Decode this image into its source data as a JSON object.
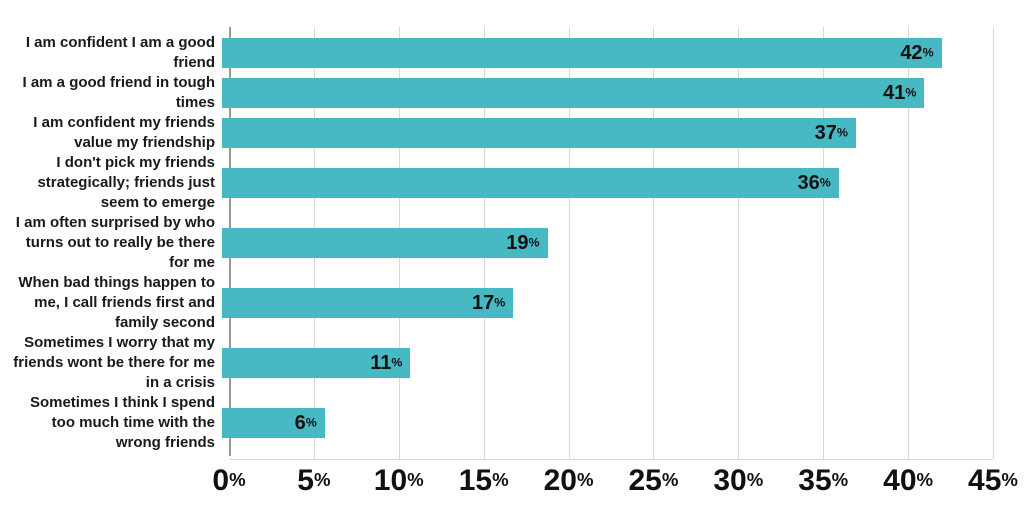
{
  "chart_data": {
    "type": "bar",
    "orientation": "horizontal",
    "title": "",
    "xlabel": "",
    "ylabel": "",
    "categories": [
      "I am confident I am a good\nfriend",
      "I am a good friend in tough\ntimes",
      "I am confident my friends\nvalue my friendship",
      "I don't pick my friends\nstrategically; friends just\nseem to emerge",
      "I am often surprised by who\nturns out to really be there\nfor me",
      "When bad things happen to\nme, I call friends first and\nfamily second",
      "Sometimes I worry that my\nfriends wont be there for me\nin a crisis",
      "Sometimes I think I spend\ntoo much time with the\nwrong friends"
    ],
    "values": [
      42,
      41,
      37,
      36,
      19,
      17,
      11,
      6
    ],
    "value_labels": [
      "42%",
      "41%",
      "37%",
      "36%",
      "19%",
      "17%",
      "11%",
      "6%"
    ],
    "xlim": [
      0,
      45
    ],
    "x_ticks": [
      {
        "value": 0,
        "label": "0%"
      },
      {
        "value": 5,
        "label": "5%"
      },
      {
        "value": 10,
        "label": "10%"
      },
      {
        "value": 15,
        "label": "15%"
      },
      {
        "value": 20,
        "label": "20%"
      },
      {
        "value": 25,
        "label": "25%"
      },
      {
        "value": 30,
        "label": "30%"
      },
      {
        "value": 35,
        "label": "35%"
      },
      {
        "value": 40,
        "label": "40%"
      },
      {
        "value": 45,
        "label": "45%"
      }
    ],
    "grid": true,
    "legend_position": "none",
    "colors": {
      "bar": "#47b9c3",
      "gridline": "#d9d9d9",
      "axis_line": "#999999",
      "baseline": "#d9d9d9",
      "text": "#111111",
      "background": "#ffffff"
    }
  }
}
